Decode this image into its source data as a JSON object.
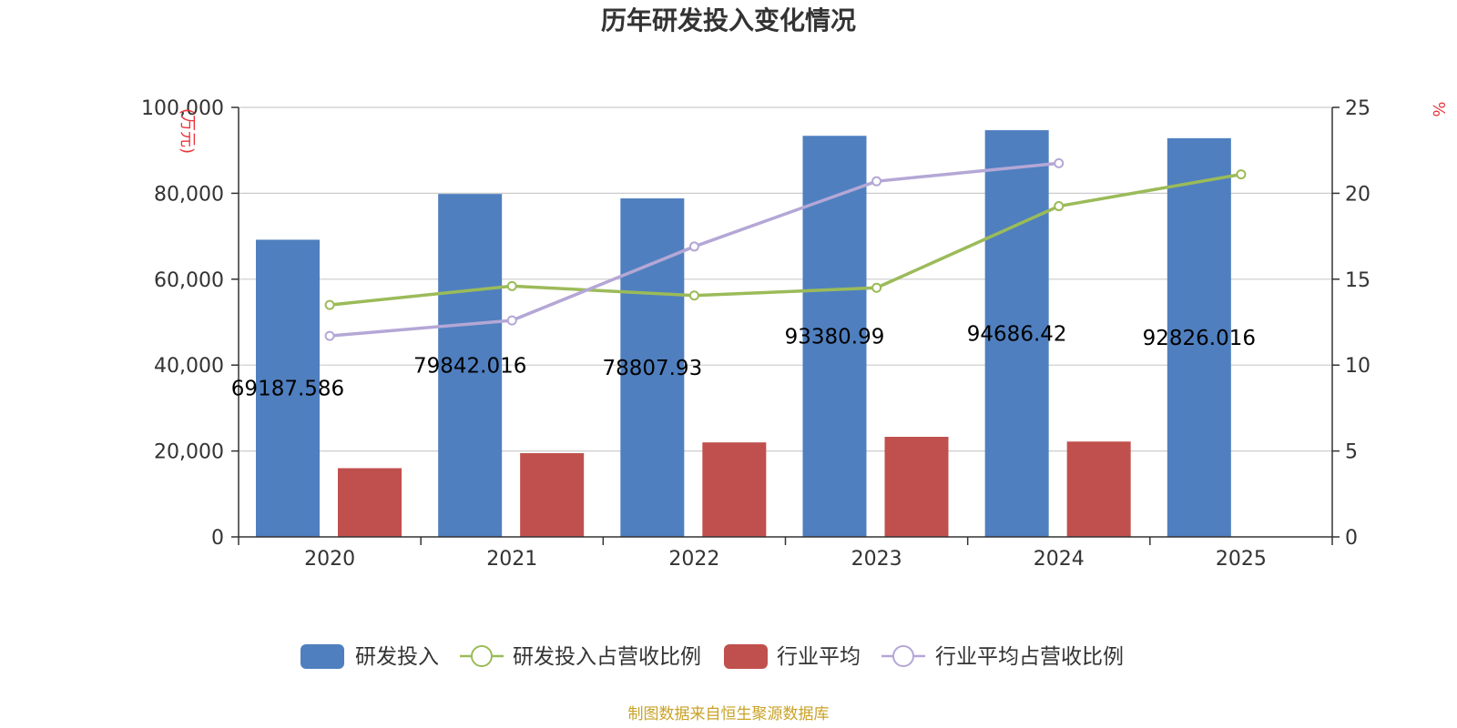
{
  "chart_data": {
    "type": "bar",
    "title": "历年研发投入变化情况",
    "categories": [
      "2020",
      "2021",
      "2022",
      "2023",
      "2024",
      "2025"
    ],
    "y_left": {
      "unit_label": "(万元)",
      "ylim": [
        0,
        100000
      ],
      "ticks": [
        0,
        20000,
        40000,
        60000,
        80000,
        100000
      ],
      "tick_labels": [
        "0",
        "20,000",
        "40,000",
        "60,000",
        "80,000",
        "100,000"
      ]
    },
    "y_right": {
      "unit_label": "%",
      "ylim": [
        0,
        25
      ],
      "ticks": [
        0,
        5,
        10,
        15,
        20,
        25
      ],
      "tick_labels": [
        "0",
        "5",
        "10",
        "15",
        "20",
        "25"
      ]
    },
    "series": [
      {
        "name": "研发投入",
        "kind": "bar",
        "axis": "left",
        "color": "#4f7fbf",
        "values": [
          69187.586,
          79842.016,
          78807.93,
          93380.99,
          94686.42,
          92826.016
        ],
        "data_labels": [
          "69187.586",
          "79842.016",
          "78807.93",
          "93380.99",
          "94686.42",
          "92826.016"
        ]
      },
      {
        "name": "研发投入占营收比例",
        "kind": "line",
        "axis": "right",
        "color": "#9bbb59",
        "values": [
          13.5,
          14.6,
          14.05,
          14.5,
          19.25,
          21.1
        ]
      },
      {
        "name": "行业平均",
        "kind": "bar",
        "axis": "left",
        "color": "#c0504d",
        "values": [
          16000,
          19500,
          22000,
          23300,
          22200,
          null
        ]
      },
      {
        "name": "行业平均占营收比例",
        "kind": "line",
        "axis": "right",
        "color": "#b4a7d6",
        "values": [
          11.7,
          12.6,
          16.9,
          20.7,
          21.75,
          null
        ]
      }
    ],
    "grid": true,
    "legend_position": "bottom"
  },
  "footer": {
    "source": "制图数据来自恒生聚源数据库"
  }
}
